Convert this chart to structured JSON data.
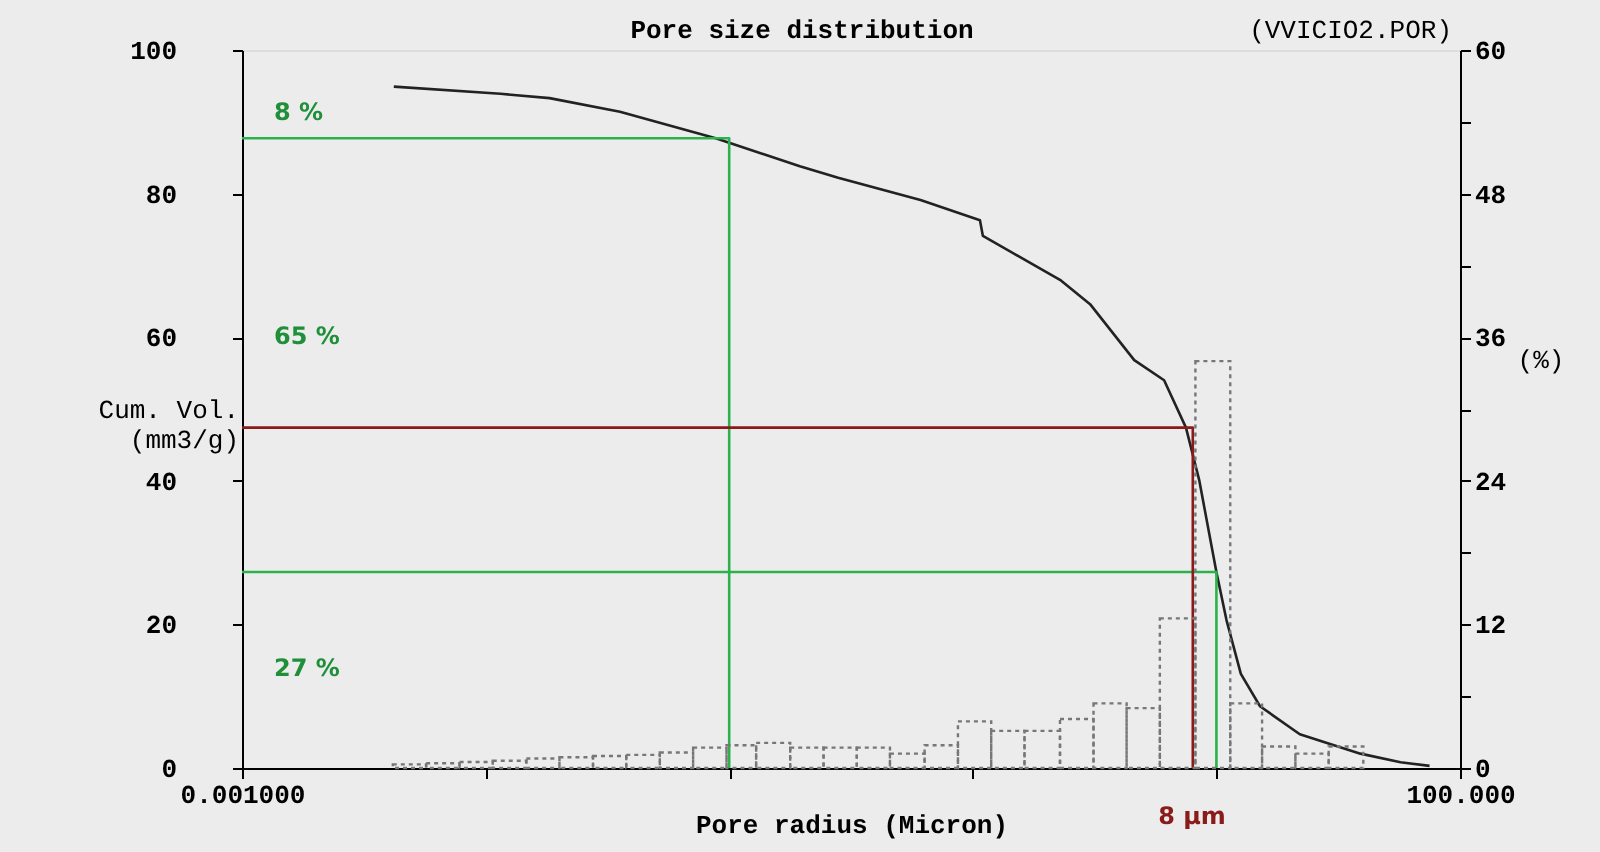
{
  "chart_data": {
    "type": "line",
    "title": "Pore size distribution",
    "xlabel": "Pore radius (Micron)",
    "ylabel": "Cum. Vol.\n(mm3/g)",
    "y2label": "(%)",
    "log": "x",
    "grid": false,
    "marker": "none",
    "xlim": [
      0.001,
      100
    ],
    "xticks": [
      {
        "value": 0.001,
        "label": "0.001000"
      },
      {
        "value": 0.01,
        "label": null
      },
      {
        "value": 0.1,
        "label": null
      },
      {
        "value": 1,
        "label": null
      },
      {
        "value": 10,
        "label": null
      },
      {
        "value": 100,
        "label": "100.000"
      }
    ],
    "ylim": [
      0,
      100
    ],
    "yticks": [
      0,
      {
        "value": 10,
        "label": null
      },
      20,
      {
        "value": 30,
        "label": null
      },
      40,
      {
        "value": 50,
        "label": null
      },
      60,
      {
        "value": 70,
        "label": null
      },
      80,
      {
        "value": 90,
        "label": null
      },
      100
    ],
    "y2lim": [
      0,
      60
    ],
    "y2ticks": [
      0,
      {
        "value": 6,
        "label": null
      },
      12,
      {
        "value": 18,
        "label": null
      },
      24,
      {
        "value": 30,
        "label": null
      },
      36,
      {
        "value": 42,
        "label": null
      },
      48,
      {
        "value": 54,
        "label": null
      },
      60
    ],
    "series": [
      {
        "type": "histogram",
        "axis": "y2",
        "color": "#777777",
        "line_style": "dotted",
        "bins": [
          0.00416,
          0.0057,
          0.00782,
          0.0107,
          0.0147,
          0.0201,
          0.0276,
          0.0378,
          0.0519,
          0.0711,
          0.0975,
          0.129,
          0.178,
          0.244,
          0.334,
          0.457,
          0.634,
          0.869,
          1.19,
          1.63,
          2.28,
          3.13,
          4.28,
          5.86,
          8.2,
          11.4,
          15.4,
          21.1,
          28.9,
          40.1
        ],
        "values": [
          0.3,
          0.4,
          0.5,
          0.6,
          0.8,
          0.9,
          1.0,
          1.1,
          1.3,
          1.7,
          1.9,
          2.1,
          1.7,
          1.7,
          1.7,
          1.2,
          1.9,
          3.9,
          3.1,
          3.1,
          4.1,
          5.4,
          5.0,
          12.5,
          34.0,
          5.4,
          1.8,
          1.2,
          1.8
        ]
      },
      {
        "color": "#222222",
        "line_style": "solid",
        "x": [
          0.0042,
          0.0115,
          0.0183,
          0.0356,
          0.088,
          0.195,
          0.28,
          0.61,
          1.07,
          1.1,
          2.28,
          3.03,
          4.6,
          6.1,
          7.5,
          8.5,
          10,
          11,
          12.6,
          15.1,
          22,
          39,
          57,
          75
        ],
        "values": [
          94.9,
          93.9,
          93.3,
          91.4,
          87.7,
          83.8,
          82.2,
          79.1,
          76.3,
          74.1,
          68.0,
          64.6,
          56.8,
          54.0,
          47.4,
          40.1,
          27.3,
          20.6,
          13.1,
          8.6,
          4.7,
          2.0,
          0.8,
          0.3
        ]
      },
      {
        "color": "#2bb24c",
        "line_style": "solid",
        "x": [
          0.001,
          0.1,
          0.1
        ],
        "values": [
          87.7,
          87.7,
          0
        ]
      },
      {
        "color": "#2bb24c",
        "line_style": "solid",
        "x": [
          0.001,
          10,
          10
        ],
        "values": [
          27.3,
          27.3,
          0
        ]
      },
      {
        "color": "#8b1a1a",
        "line_style": "solid",
        "x": [
          0.001,
          8,
          8
        ],
        "values": [
          47.4,
          47.4,
          0
        ]
      }
    ],
    "annotations": [
      "8 %",
      "65 %",
      "27 %",
      "8 µm",
      "(VVICIO2.POR)"
    ]
  }
}
